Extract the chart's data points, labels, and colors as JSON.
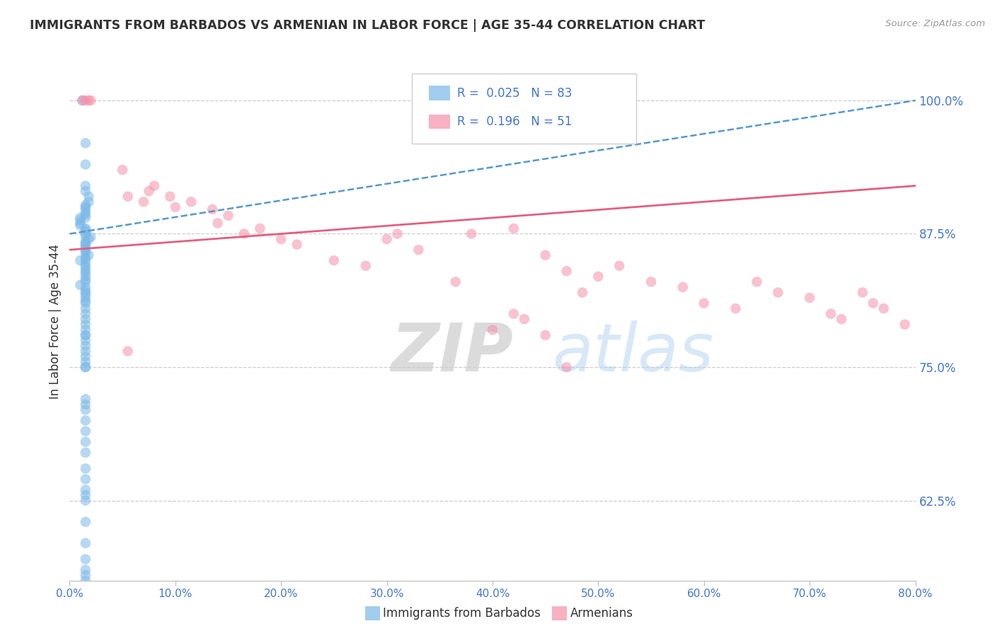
{
  "title": "IMMIGRANTS FROM BARBADOS VS ARMENIAN IN LABOR FORCE | AGE 35-44 CORRELATION CHART",
  "source": "Source: ZipAtlas.com",
  "ylabel_left": "In Labor Force | Age 35-44",
  "x_tick_values": [
    0.0,
    10.0,
    20.0,
    30.0,
    40.0,
    50.0,
    60.0,
    70.0,
    80.0
  ],
  "y_tick_values_right": [
    62.5,
    75.0,
    87.5,
    100.0
  ],
  "xlim": [
    0.0,
    80.0
  ],
  "ylim": [
    55.0,
    103.5
  ],
  "barbados_R": 0.025,
  "barbados_N": 83,
  "armenian_R": 0.196,
  "armenian_N": 51,
  "barbados_color": "#7ab8e8",
  "armenian_color": "#f590aa",
  "barbados_trend_color": "#5599cc",
  "armenian_trend_color": "#e06080",
  "background_color": "#ffffff",
  "grid_color": "#cccccc",
  "axis_label_color": "#4477cc",
  "title_color": "#333333",
  "legend_label1": "Immigrants from Barbados",
  "legend_label2": "Armenians",
  "watermark_zip": "ZIP",
  "watermark_atlas": "atlas",
  "barbados_x": [
    1.2,
    1.5,
    1.5,
    1.5,
    1.5,
    1.8,
    1.8,
    1.5,
    1.5,
    1.5,
    1.5,
    1.5,
    1.5,
    1.0,
    1.0,
    1.0,
    1.0,
    1.5,
    1.5,
    1.5,
    1.5,
    1.5,
    2.0,
    1.8,
    1.5,
    1.5,
    1.5,
    1.5,
    1.5,
    1.5,
    1.5,
    1.8,
    1.5,
    1.5,
    1.0,
    1.5,
    1.5,
    1.5,
    1.5,
    1.5,
    1.5,
    1.5,
    1.5,
    1.0,
    1.5,
    1.5,
    1.5,
    1.5,
    1.5,
    1.5,
    1.5,
    1.5,
    1.5,
    1.5,
    1.5,
    1.5,
    1.5,
    1.5,
    1.5,
    1.5,
    1.5,
    1.5,
    1.5,
    1.5,
    1.5,
    1.5,
    1.5,
    1.5,
    1.5,
    1.5,
    1.5,
    1.5,
    1.5,
    1.5,
    1.5,
    1.5,
    1.5,
    1.5,
    1.5,
    1.5,
    1.5,
    1.5,
    1.5
  ],
  "barbados_y": [
    100.0,
    96.0,
    94.0,
    92.0,
    91.5,
    91.0,
    90.5,
    90.2,
    90.0,
    89.8,
    89.5,
    89.3,
    89.0,
    89.0,
    88.8,
    88.5,
    88.3,
    88.0,
    87.9,
    87.7,
    87.5,
    87.3,
    87.2,
    87.0,
    86.8,
    86.6,
    86.5,
    86.3,
    86.1,
    85.9,
    85.7,
    85.5,
    85.3,
    85.1,
    85.0,
    84.8,
    84.5,
    84.3,
    84.0,
    83.8,
    83.5,
    83.2,
    83.0,
    82.7,
    82.5,
    82.2,
    82.0,
    81.8,
    81.5,
    81.2,
    81.0,
    80.5,
    80.0,
    79.5,
    79.0,
    78.5,
    78.0,
    77.5,
    77.0,
    76.5,
    76.0,
    75.5,
    75.0,
    72.0,
    71.5,
    71.0,
    70.0,
    69.0,
    68.0,
    67.0,
    65.5,
    64.5,
    63.0,
    62.5,
    78.0,
    75.0,
    63.5,
    60.5,
    58.5,
    57.0,
    56.0,
    55.5,
    55.0
  ],
  "armenian_x": [
    1.2,
    1.5,
    1.8,
    2.0,
    5.0,
    5.5,
    7.0,
    7.5,
    8.0,
    9.5,
    10.0,
    11.5,
    13.5,
    14.0,
    15.0,
    16.5,
    18.0,
    20.0,
    21.5,
    25.0,
    28.0,
    30.0,
    31.0,
    33.0,
    36.5,
    42.0,
    45.0,
    47.0,
    48.5,
    50.0,
    52.0,
    55.0,
    58.0,
    60.0,
    63.0,
    65.0,
    67.0,
    70.0,
    72.0,
    73.0,
    75.0,
    76.0,
    77.0,
    79.0,
    40.0,
    42.0,
    43.0,
    45.0,
    47.0,
    38.0,
    5.5
  ],
  "armenian_y": [
    100.0,
    100.0,
    100.0,
    100.0,
    93.5,
    91.0,
    90.5,
    91.5,
    92.0,
    91.0,
    90.0,
    90.5,
    89.8,
    88.5,
    89.2,
    87.5,
    88.0,
    87.0,
    86.5,
    85.0,
    84.5,
    87.0,
    87.5,
    86.0,
    83.0,
    88.0,
    85.5,
    84.0,
    82.0,
    83.5,
    84.5,
    83.0,
    82.5,
    81.0,
    80.5,
    83.0,
    82.0,
    81.5,
    80.0,
    79.5,
    82.0,
    81.0,
    80.5,
    79.0,
    78.5,
    80.0,
    79.5,
    78.0,
    75.0,
    87.5,
    76.5
  ]
}
